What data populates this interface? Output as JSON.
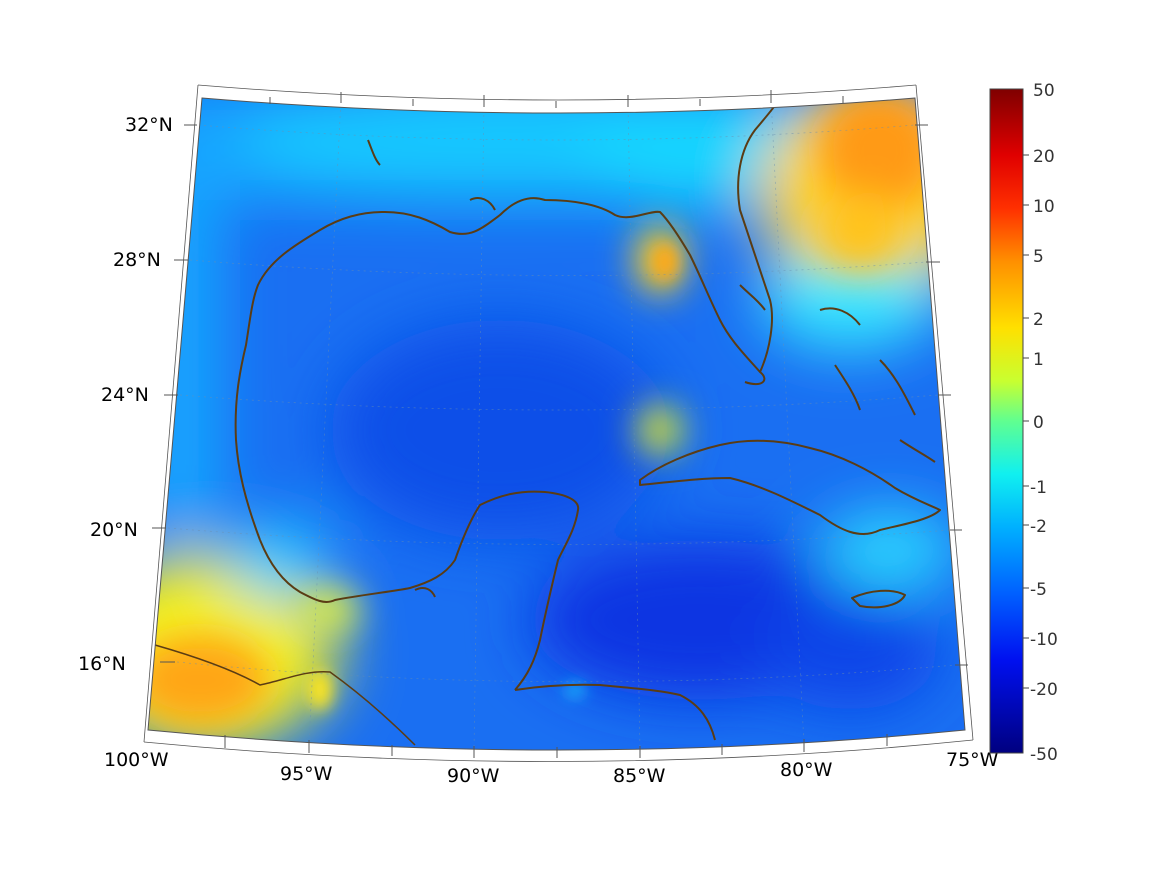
{
  "map": {
    "lon_ticks": [
      "100°W",
      "95°W",
      "90°W",
      "85°W",
      "80°W",
      "75°W"
    ],
    "lat_ticks": [
      "16°N",
      "20°N",
      "24°N",
      "28°N",
      "32°N"
    ],
    "colors": {
      "deep_blue": "#0a2fe0",
      "mid_blue": "#1f6cf5",
      "light_blue": "#19a8ff",
      "cyan": "#12e6ff",
      "yellow": "#f5f014",
      "orange": "#ffa214",
      "coastline": "#5a3c14"
    }
  },
  "colorbar": {
    "labels": [
      "50",
      "20",
      "10",
      "5",
      "2",
      "1",
      "0",
      "-1",
      "-2",
      "-5",
      "-10",
      "-20",
      "-50"
    ],
    "colors": [
      "#7f0000",
      "#ff0000",
      "#ff5a00",
      "#ffae00",
      "#fff500",
      "#c6ff2e",
      "#48ffb0",
      "#00e0ff",
      "#00a0ff",
      "#0050ff",
      "#0010ff",
      "#0000b0"
    ]
  }
}
